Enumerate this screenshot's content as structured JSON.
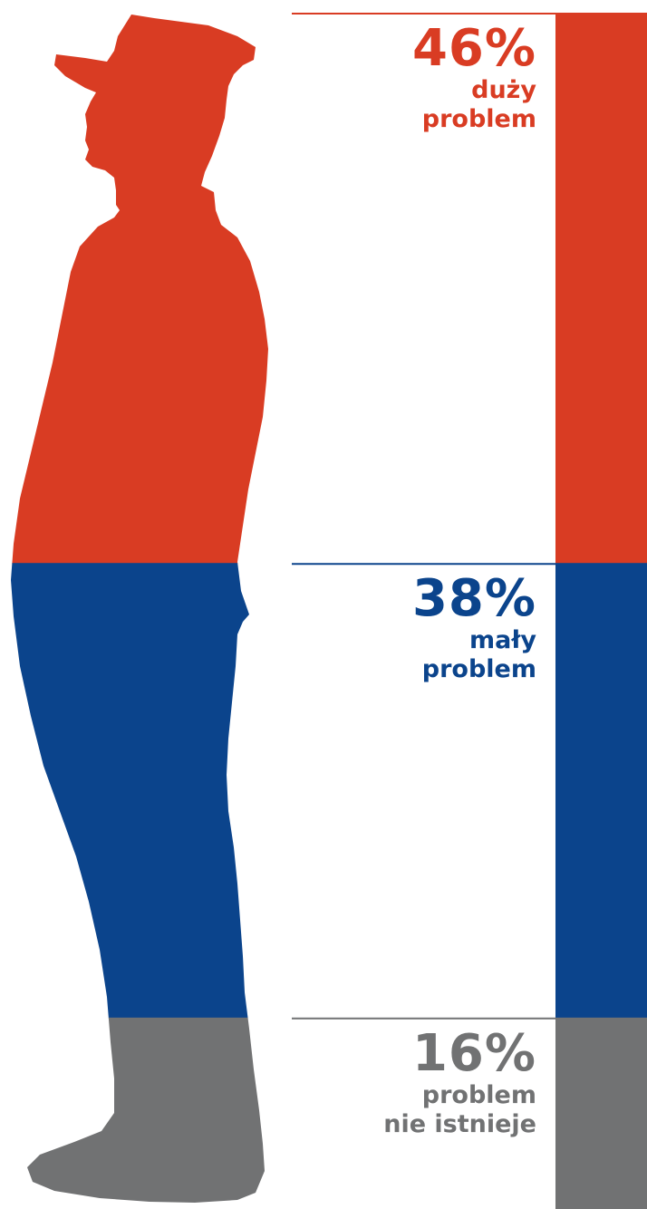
{
  "chart_data": {
    "type": "bar",
    "orientation": "vertical-stacked",
    "categories": [
      "duży problem",
      "mały problem",
      "problem nie istnieje"
    ],
    "values": [
      46,
      38,
      16
    ],
    "unit": "%",
    "segments": [
      {
        "percent_label": "46%",
        "label_lines": [
          "duży",
          "problem"
        ],
        "value": 46,
        "color": "#d93c23"
      },
      {
        "percent_label": "38%",
        "label_lines": [
          "mały",
          "problem"
        ],
        "value": 38,
        "color": "#0b448c"
      },
      {
        "percent_label": "16%",
        "label_lines": [
          "problem",
          "nie istnieje"
        ],
        "value": 16,
        "color": "#717273"
      }
    ],
    "title": "",
    "xlabel": "",
    "ylabel": "",
    "legend": "none",
    "grid": false
  }
}
